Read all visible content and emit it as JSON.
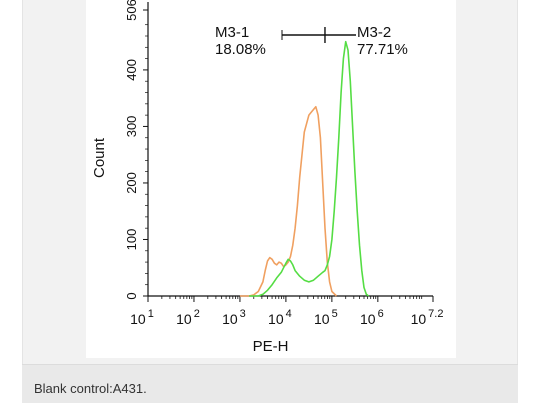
{
  "caption": "Blank control:A431.",
  "chart_data": {
    "type": "histogram",
    "title": "",
    "xlabel": "PE-H",
    "ylabel": "Count",
    "x_scale": "log10",
    "xlim": [
      1,
      7.2
    ],
    "ylim": [
      0,
      506
    ],
    "x_ticks": [
      {
        "exp": 1,
        "label_base": "10",
        "label_sup": "1"
      },
      {
        "exp": 2,
        "label_base": "10",
        "label_sup": "2"
      },
      {
        "exp": 3,
        "label_base": "10",
        "label_sup": "3"
      },
      {
        "exp": 4,
        "label_base": "10",
        "label_sup": "4"
      },
      {
        "exp": 5,
        "label_base": "10",
        "label_sup": "5"
      },
      {
        "exp": 6,
        "label_base": "10",
        "label_sup": "6"
      },
      {
        "exp": 7.2,
        "label_base": "10",
        "label_sup": "7.2"
      }
    ],
    "y_ticks": [
      "0",
      "100",
      "200",
      "300",
      "400",
      "506"
    ],
    "gates": [
      {
        "name": "M3-1",
        "percent": "18.08%"
      },
      {
        "name": "M3-2",
        "percent": "77.71%"
      }
    ],
    "gate_boundary_log": 4.85,
    "series": [
      {
        "color": "#f0a060",
        "points": [
          [
            3.0,
            0
          ],
          [
            3.2,
            0
          ],
          [
            3.3,
            2
          ],
          [
            3.4,
            8
          ],
          [
            3.5,
            25
          ],
          [
            3.55,
            45
          ],
          [
            3.6,
            62
          ],
          [
            3.65,
            68
          ],
          [
            3.7,
            65
          ],
          [
            3.75,
            58
          ],
          [
            3.8,
            55
          ],
          [
            3.85,
            60
          ],
          [
            3.9,
            58
          ],
          [
            3.95,
            52
          ],
          [
            4.0,
            55
          ],
          [
            4.05,
            60
          ],
          [
            4.1,
            70
          ],
          [
            4.15,
            90
          ],
          [
            4.2,
            120
          ],
          [
            4.25,
            160
          ],
          [
            4.3,
            210
          ],
          [
            4.35,
            250
          ],
          [
            4.4,
            290
          ],
          [
            4.45,
            305
          ],
          [
            4.5,
            320
          ],
          [
            4.55,
            325
          ],
          [
            4.6,
            330
          ],
          [
            4.65,
            335
          ],
          [
            4.7,
            320
          ],
          [
            4.75,
            280
          ],
          [
            4.8,
            200
          ],
          [
            4.85,
            120
          ],
          [
            4.9,
            60
          ],
          [
            4.95,
            25
          ],
          [
            5.0,
            8
          ],
          [
            5.1,
            0
          ]
        ]
      },
      {
        "color": "#55dd44",
        "points": [
          [
            3.2,
            0
          ],
          [
            3.4,
            0
          ],
          [
            3.5,
            3
          ],
          [
            3.6,
            10
          ],
          [
            3.7,
            20
          ],
          [
            3.8,
            32
          ],
          [
            3.9,
            42
          ],
          [
            3.95,
            50
          ],
          [
            4.0,
            58
          ],
          [
            4.05,
            65
          ],
          [
            4.1,
            62
          ],
          [
            4.15,
            55
          ],
          [
            4.2,
            45
          ],
          [
            4.3,
            35
          ],
          [
            4.4,
            28
          ],
          [
            4.5,
            25
          ],
          [
            4.6,
            28
          ],
          [
            4.7,
            35
          ],
          [
            4.8,
            42
          ],
          [
            4.85,
            45
          ],
          [
            4.9,
            55
          ],
          [
            4.95,
            70
          ],
          [
            5.0,
            100
          ],
          [
            5.05,
            150
          ],
          [
            5.1,
            210
          ],
          [
            5.15,
            280
          ],
          [
            5.2,
            360
          ],
          [
            5.25,
            420
          ],
          [
            5.3,
            450
          ],
          [
            5.35,
            435
          ],
          [
            5.4,
            380
          ],
          [
            5.45,
            300
          ],
          [
            5.5,
            220
          ],
          [
            5.55,
            150
          ],
          [
            5.6,
            90
          ],
          [
            5.65,
            45
          ],
          [
            5.7,
            15
          ],
          [
            5.75,
            3
          ],
          [
            5.8,
            0
          ]
        ]
      }
    ]
  }
}
